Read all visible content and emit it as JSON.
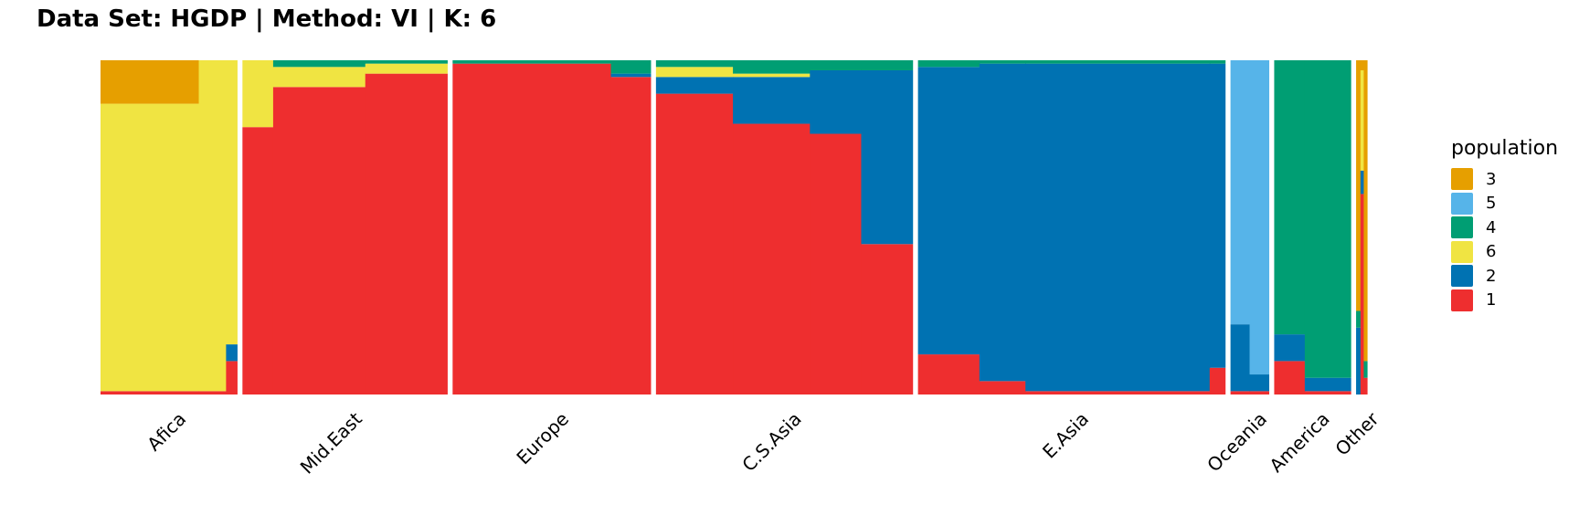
{
  "chart_data": {
    "type": "bar",
    "title": "Data Set: HGDP | Method: VI | K: 6",
    "xlabel": "",
    "ylabel": "",
    "ylim": [
      0,
      1
    ],
    "grid": false,
    "legend_position": "right",
    "legend": {
      "title": "population",
      "entries": [
        {
          "name": "3",
          "color": "#E69F00"
        },
        {
          "name": "5",
          "color": "#56B4E9"
        },
        {
          "name": "4",
          "color": "#009E73"
        },
        {
          "name": "6",
          "color": "#F0E442"
        },
        {
          "name": "2",
          "color": "#0072B2"
        },
        {
          "name": "1",
          "color": "#EE2E2F"
        }
      ]
    },
    "stack_order_bottom_to_top": [
      "1",
      "2",
      "6",
      "4",
      "5",
      "3"
    ],
    "series_colors": {
      "1": "#EE2E2F",
      "2": "#0072B2",
      "3": "#E69F00",
      "4": "#009E73",
      "5": "#56B4E9",
      "6": "#F0E442"
    },
    "groups": [
      {
        "label": "Afica",
        "individuals": 100,
        "segments": [
          {
            "share": 0.72,
            "values": {
              "1": 0.01,
              "6": 0.86,
              "3": 0.13
            }
          },
          {
            "share": 0.2,
            "values": {
              "1": 0.01,
              "6": 0.99
            }
          },
          {
            "share": 0.08,
            "values": {
              "1": 0.1,
              "2": 0.05,
              "6": 0.85
            }
          }
        ]
      },
      {
        "label": "Mid.East",
        "individuals": 150,
        "segments": [
          {
            "share": 0.15,
            "values": {
              "1": 0.8,
              "6": 0.2
            }
          },
          {
            "share": 0.45,
            "values": {
              "1": 0.92,
              "6": 0.06,
              "4": 0.02
            }
          },
          {
            "share": 0.4,
            "values": {
              "1": 0.96,
              "6": 0.03,
              "4": 0.01
            }
          }
        ]
      },
      {
        "label": "Europe",
        "individuals": 145,
        "segments": [
          {
            "share": 0.8,
            "values": {
              "1": 0.99,
              "4": 0.01
            }
          },
          {
            "share": 0.2,
            "values": {
              "1": 0.95,
              "2": 0.01,
              "4": 0.04
            }
          }
        ]
      },
      {
        "label": "C.S.Asia",
        "individuals": 188,
        "segments": [
          {
            "share": 0.3,
            "values": {
              "1": 0.9,
              "2": 0.05,
              "6": 0.03,
              "4": 0.02
            }
          },
          {
            "share": 0.3,
            "values": {
              "1": 0.81,
              "2": 0.14,
              "6": 0.01,
              "4": 0.04
            }
          },
          {
            "share": 0.2,
            "values": {
              "1": 0.78,
              "2": 0.19,
              "4": 0.03
            }
          },
          {
            "share": 0.2,
            "values": {
              "1": 0.45,
              "2": 0.52,
              "4": 0.03
            }
          }
        ]
      },
      {
        "label": "E.Asia",
        "individuals": 225,
        "segments": [
          {
            "share": 0.2,
            "values": {
              "1": 0.12,
              "2": 0.86,
              "4": 0.02
            }
          },
          {
            "share": 0.15,
            "values": {
              "1": 0.04,
              "2": 0.95,
              "4": 0.01
            }
          },
          {
            "share": 0.6,
            "values": {
              "1": 0.01,
              "2": 0.98,
              "4": 0.01
            }
          },
          {
            "share": 0.05,
            "values": {
              "1": 0.08,
              "2": 0.91,
              "4": 0.01
            }
          }
        ]
      },
      {
        "label": "Oceania",
        "individuals": 28,
        "segments": [
          {
            "share": 0.5,
            "values": {
              "1": 0.01,
              "2": 0.2,
              "5": 0.79
            }
          },
          {
            "share": 0.5,
            "values": {
              "1": 0.01,
              "2": 0.05,
              "5": 0.94
            }
          }
        ]
      },
      {
        "label": "America",
        "individuals": 56,
        "segments": [
          {
            "share": 0.4,
            "values": {
              "1": 0.1,
              "2": 0.08,
              "4": 0.82
            }
          },
          {
            "share": 0.6,
            "values": {
              "1": 0.01,
              "2": 0.04,
              "4": 0.95
            }
          }
        ]
      },
      {
        "label": "Other",
        "individuals": 8,
        "segments": [
          {
            "share": 0.4,
            "values": {
              "2": 0.2,
              "4": 0.05,
              "3": 0.75
            }
          },
          {
            "share": 0.3,
            "values": {
              "1": 0.6,
              "2": 0.07,
              "6": 0.3,
              "3": 0.03
            }
          },
          {
            "share": 0.3,
            "values": {
              "1": 0.05,
              "4": 0.05,
              "3": 0.9
            }
          }
        ]
      }
    ]
  }
}
